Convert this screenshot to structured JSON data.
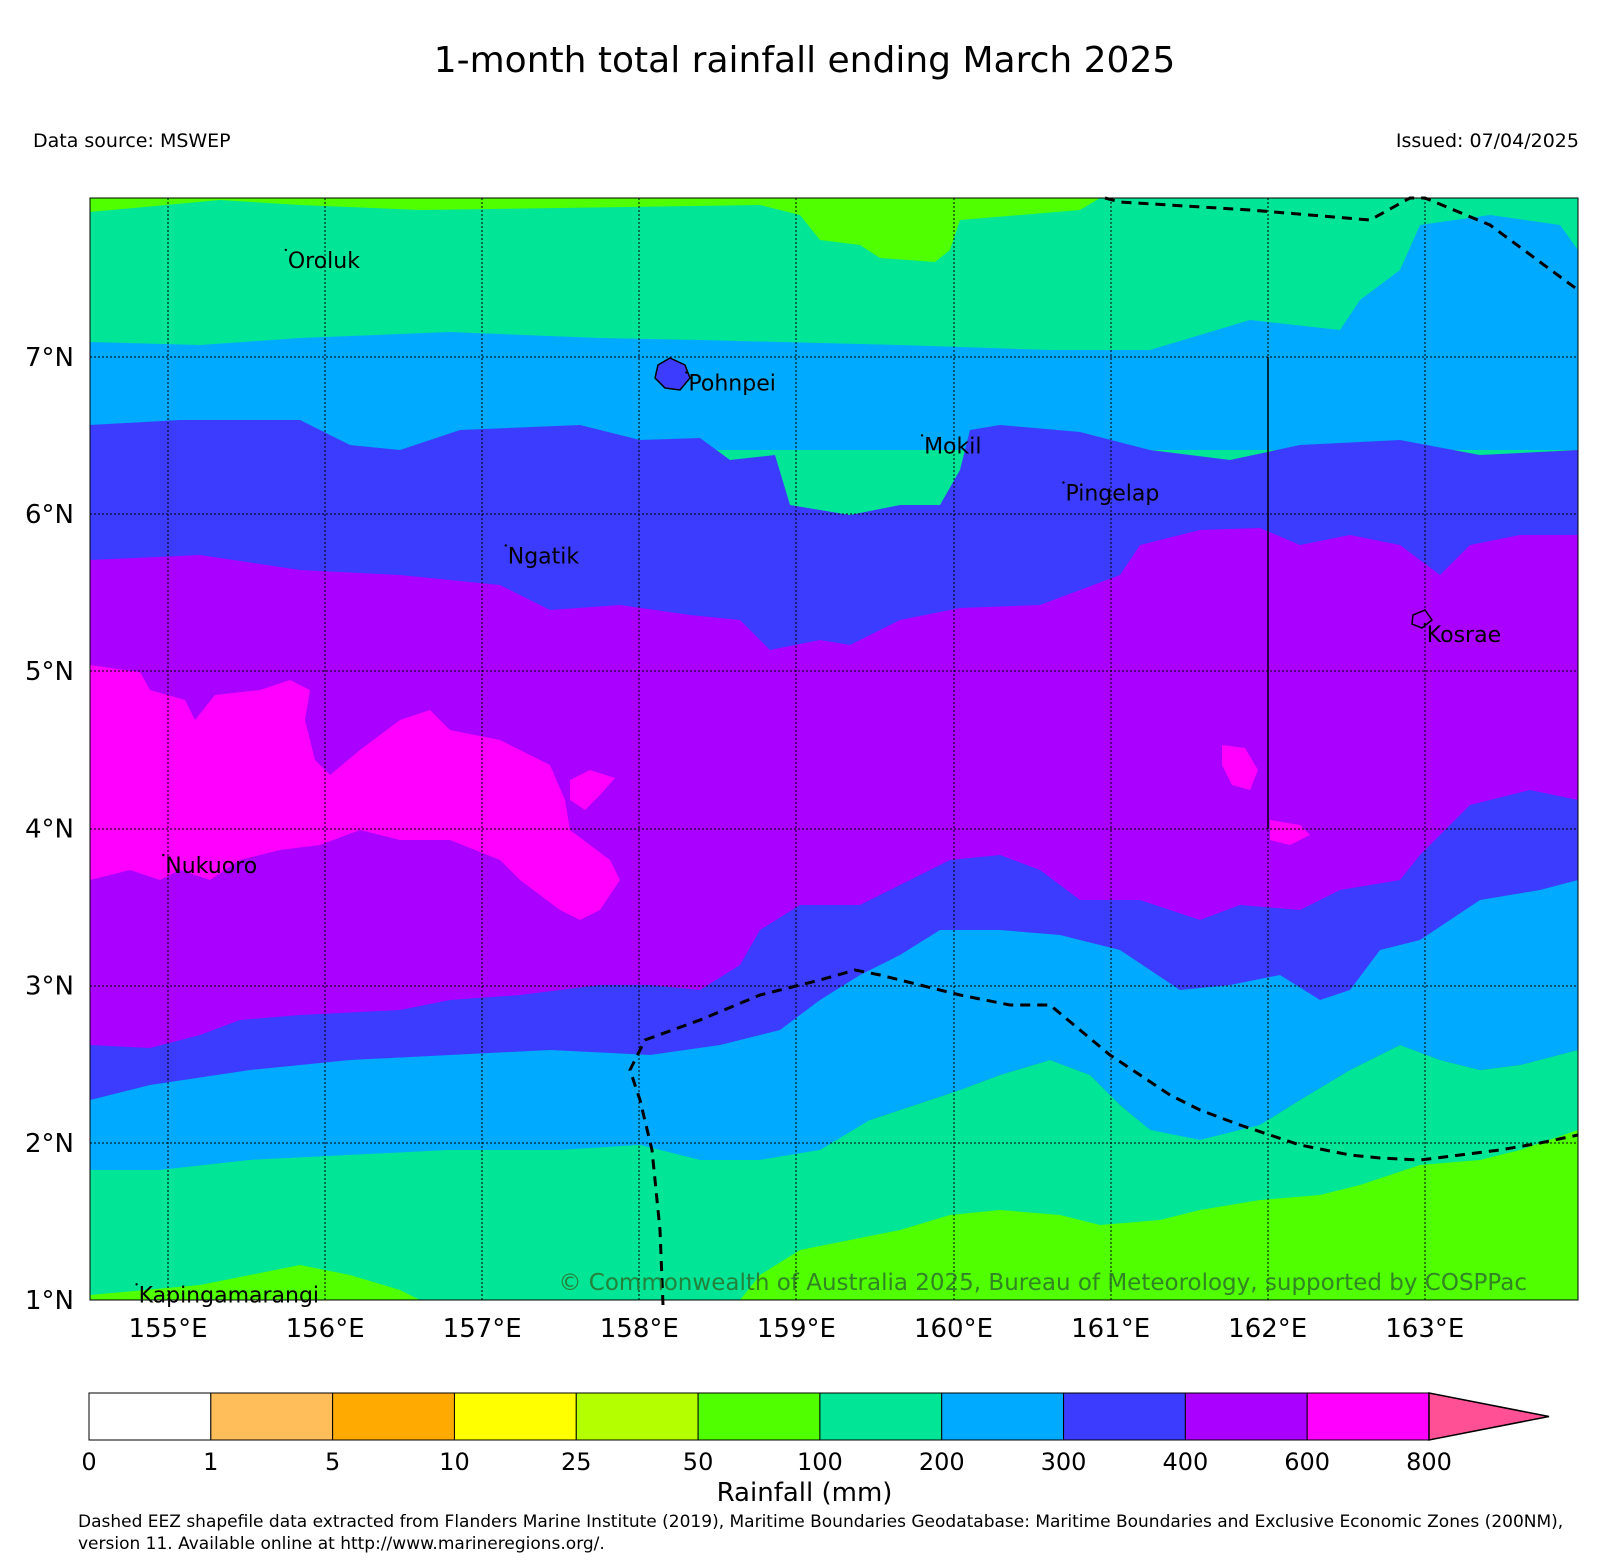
{
  "title": "1-month total rainfall ending March 2025",
  "data_source": "Data source: MSWEP",
  "issued": "Issued: 07/04/2025",
  "copyright": "© Commonwealth of Australia 2025, Bureau of Meteorology, supported by COSPPac",
  "lat_labels": [
    "1°N",
    "2°N",
    "3°N",
    "4°N",
    "5°N",
    "6°N",
    "7°N"
  ],
  "lon_labels": [
    "155°E",
    "156°E",
    "157°E",
    "158°E",
    "159°E",
    "160°E",
    "161°E",
    "162°E",
    "163°E"
  ],
  "places": [
    {
      "name": "Oroluk",
      "lon": 155.75,
      "lat": 7.68
    },
    {
      "name": "Pohnpei",
      "lon": 158.3,
      "lat": 6.9
    },
    {
      "name": "Mokil",
      "lon": 159.8,
      "lat": 6.5
    },
    {
      "name": "Pingelap",
      "lon": 160.7,
      "lat": 6.2
    },
    {
      "name": "Ngatik",
      "lon": 157.15,
      "lat": 5.8
    },
    {
      "name": "Kosrae",
      "lon": 163.0,
      "lat": 5.3
    },
    {
      "name": "Nukuoro",
      "lon": 154.97,
      "lat": 3.83
    },
    {
      "name": "Kapingamarangi",
      "lon": 154.8,
      "lat": 1.1
    }
  ],
  "colorbar": {
    "title": "Rainfall (mm)",
    "ticks": [
      "0",
      "1",
      "5",
      "10",
      "25",
      "50",
      "100",
      "200",
      "300",
      "400",
      "600",
      "800"
    ],
    "colors": [
      "#ffffff",
      "#ffbe5a",
      "#ffaa00",
      "#ffff00",
      "#b4ff00",
      "#50ff00",
      "#00e696",
      "#00aaff",
      "#3c3cff",
      "#aa00ff",
      "#ff00ff"
    ],
    "extend_color": "#ff5096"
  },
  "footnote": "Dashed EEZ shapefile data extracted from Flanders Marine Institute (2019), Maritime Boundaries Geodatabase: Maritime Boundaries and Exclusive Economic Zones (200NM), version 11. Available online at http://www.marineregions.org/."
}
